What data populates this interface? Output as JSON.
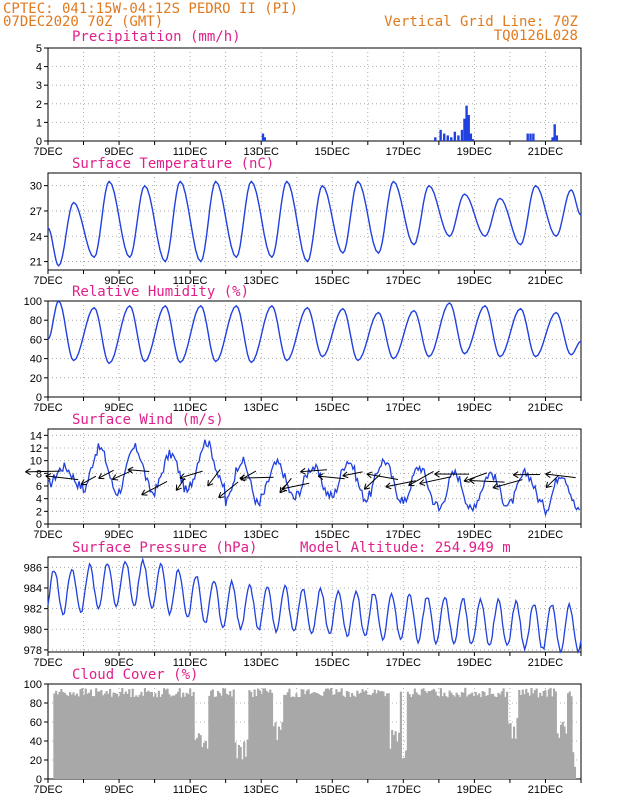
{
  "header": {
    "line1": "CPTEC:  041:15W-04:12S  PEDRO II (PI)",
    "line2": "07DEC2020 70Z (GMT)",
    "grid_line": "Vertical Grid Line: 70Z",
    "code": "TQ0126L028"
  },
  "colors": {
    "header": "#e07a1f",
    "panel_title": "#e0208a",
    "series": "#2040e0",
    "cloud": "#a8a8a8",
    "arrows": "#000000"
  },
  "chart_data": [
    {
      "type": "bar",
      "title": "Precipitation (mm/h)",
      "ylim": [
        0,
        5
      ],
      "yticks": [
        "0",
        "1",
        "2",
        "3",
        "4",
        "5"
      ],
      "x_dates": [
        "7DEC",
        "9DEC",
        "11DEC",
        "13DEC",
        "15DEC",
        "17DEC",
        "19DEC",
        "21DEC"
      ],
      "x_range_days": [
        7,
        22
      ],
      "bars": [
        {
          "x": 13.05,
          "y": 0.4
        },
        {
          "x": 13.1,
          "y": 0.2
        },
        {
          "x": 17.9,
          "y": 0.2
        },
        {
          "x": 18.05,
          "y": 0.6
        },
        {
          "x": 18.15,
          "y": 0.4
        },
        {
          "x": 18.25,
          "y": 0.3
        },
        {
          "x": 18.35,
          "y": 0.2
        },
        {
          "x": 18.45,
          "y": 0.5
        },
        {
          "x": 18.55,
          "y": 0.3
        },
        {
          "x": 18.65,
          "y": 0.6
        },
        {
          "x": 18.72,
          "y": 1.2
        },
        {
          "x": 18.78,
          "y": 1.9
        },
        {
          "x": 18.84,
          "y": 1.4
        },
        {
          "x": 18.9,
          "y": 0.4
        },
        {
          "x": 18.96,
          "y": 0.1
        },
        {
          "x": 20.5,
          "y": 0.4
        },
        {
          "x": 20.58,
          "y": 0.4
        },
        {
          "x": 20.66,
          "y": 0.4
        },
        {
          "x": 21.2,
          "y": 0.2
        },
        {
          "x": 21.26,
          "y": 0.9
        },
        {
          "x": 21.32,
          "y": 0.3
        }
      ]
    },
    {
      "type": "line",
      "title": "Surface Temperature (nC)",
      "ylim": [
        20,
        31.5
      ],
      "yticks": [
        "21",
        "24",
        "27",
        "30"
      ],
      "ytick_values": [
        21,
        24,
        27,
        30
      ],
      "x_dates": [
        "7DEC",
        "9DEC",
        "11DEC",
        "13DEC",
        "15DEC",
        "17DEC",
        "19DEC",
        "21DEC"
      ],
      "x_range_days": [
        7,
        22
      ],
      "daily_max": [
        28.0,
        30.5,
        30.0,
        30.5,
        30.5,
        30.5,
        30.5,
        30.0,
        30.5,
        30.5,
        30.0,
        29.0,
        28.5,
        30.0,
        29.5
      ],
      "daily_min": [
        20.5,
        21.5,
        21.5,
        21.0,
        21.0,
        21.5,
        21.5,
        21.0,
        22.0,
        22.0,
        23.0,
        24.0,
        24.0,
        23.0,
        24.0
      ]
    },
    {
      "type": "line",
      "title": "Relative Humidity (%)",
      "ylim": [
        0,
        100
      ],
      "yticks": [
        "0",
        "20",
        "40",
        "60",
        "80",
        "100"
      ],
      "ytick_values": [
        0,
        20,
        40,
        60,
        80,
        100
      ],
      "x_dates": [
        "7DEC",
        "9DEC",
        "11DEC",
        "13DEC",
        "15DEC",
        "17DEC",
        "19DEC",
        "21DEC"
      ],
      "x_range_days": [
        7,
        22
      ],
      "daily_max": [
        100,
        93,
        95,
        95,
        95,
        95,
        95,
        93,
        92,
        88,
        90,
        98,
        95,
        92,
        88
      ],
      "daily_min": [
        38,
        35,
        37,
        36,
        37,
        36,
        38,
        42,
        38,
        40,
        42,
        45,
        42,
        42,
        44
      ]
    },
    {
      "type": "line",
      "title": "Surface Wind (m/s)",
      "ylim": [
        0,
        15
      ],
      "yticks": [
        "0",
        "2",
        "4",
        "6",
        "8",
        "10",
        "12",
        "14"
      ],
      "ytick_values": [
        0,
        2,
        4,
        6,
        8,
        10,
        12,
        14
      ],
      "x_dates": [
        "7DEC",
        "9DEC",
        "11DEC",
        "13DEC",
        "15DEC",
        "17DEC",
        "19DEC",
        "21DEC"
      ],
      "x_range_days": [
        7,
        22
      ],
      "speed_max": [
        9,
        12,
        12,
        11,
        13,
        10,
        9.5,
        9,
        10,
        10,
        9,
        8,
        8,
        8,
        8
      ],
      "speed_min": [
        6,
        5,
        5,
        5,
        6,
        3,
        4,
        4.5,
        4,
        4,
        3,
        2,
        3,
        3,
        2
      ],
      "arrow_direction": "easterly / north-easterly",
      "arrow_level_ms": 7.5
    },
    {
      "type": "line",
      "title": "Surface Pressure (hPa)",
      "annotation": "Model Altitude: 254.949 m",
      "ylim": [
        977.8,
        987
      ],
      "yticks": [
        "978",
        "980",
        "982",
        "984",
        "986"
      ],
      "ytick_values": [
        978,
        980,
        982,
        984,
        986
      ],
      "x_dates": [
        "7DEC",
        "9DEC",
        "11DEC",
        "13DEC",
        "15DEC",
        "17DEC",
        "19DEC",
        "21DEC"
      ],
      "x_range_days": [
        7,
        22
      ],
      "trend_start": 983.5,
      "trend_end": 980.0,
      "semi_diurnal_amplitude": 2.2
    },
    {
      "type": "bar",
      "title": "Cloud Cover (%)",
      "ylim": [
        0,
        100
      ],
      "yticks": [
        "0",
        "20",
        "40",
        "60",
        "80",
        "100"
      ],
      "ytick_values": [
        0,
        20,
        40,
        60,
        80,
        100
      ],
      "x_dates": [
        "7DEC",
        "9DEC",
        "11DEC",
        "13DEC",
        "15DEC",
        "17DEC",
        "19DEC",
        "21DEC"
      ],
      "x_range_days": [
        7,
        22
      ],
      "typical_value": 92,
      "low_segments": [
        {
          "x0": 11.1,
          "x1": 11.5,
          "y": 30
        },
        {
          "x0": 12.2,
          "x1": 12.6,
          "y": 20
        },
        {
          "x0": 13.3,
          "x1": 13.6,
          "y": 35
        },
        {
          "x0": 16.6,
          "x1": 16.9,
          "y": 30
        },
        {
          "x0": 16.95,
          "x1": 17.05,
          "y": 5
        },
        {
          "x0": 19.9,
          "x1": 20.2,
          "y": 40
        },
        {
          "x0": 21.3,
          "x1": 21.6,
          "y": 40
        },
        {
          "x0": 21.75,
          "x1": 21.9,
          "y": 5
        }
      ]
    }
  ]
}
